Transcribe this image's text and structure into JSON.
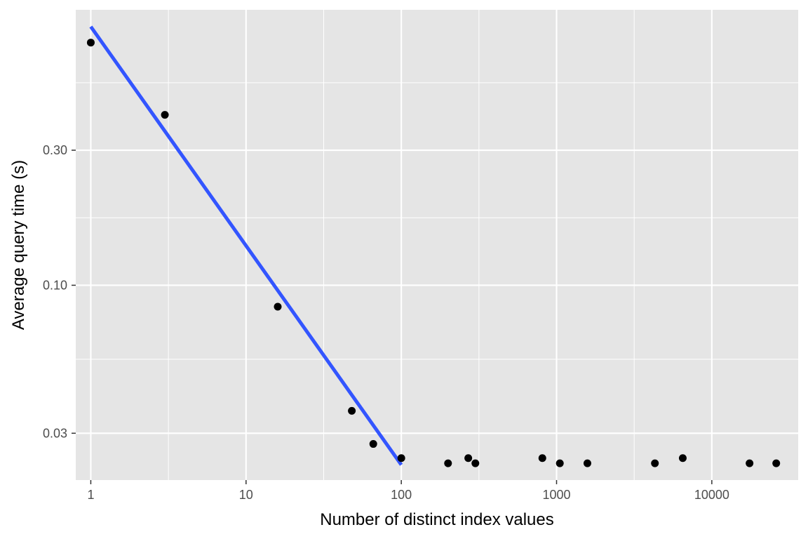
{
  "chart_data": {
    "type": "scatter",
    "title": "",
    "xlabel": "Number of distinct index values",
    "ylabel": "Average query time (s)",
    "x_scale": "log10",
    "y_scale": "log10",
    "xlim": [
      0.8,
      36000
    ],
    "ylim": [
      0.0205,
      0.94
    ],
    "x_ticks": [
      1,
      10,
      100,
      1000,
      10000
    ],
    "x_tick_labels": [
      "1",
      "10",
      "100",
      "1000",
      "10000"
    ],
    "y_ticks": [
      0.03,
      0.1,
      0.3
    ],
    "y_tick_labels": [
      "0.03",
      "0.10",
      "0.30"
    ],
    "grid": true,
    "background": "#e5e5e5",
    "point_color": "#000000",
    "fit_color": "#3355ff",
    "points": [
      {
        "x": 1,
        "y": 0.72
      },
      {
        "x": 3,
        "y": 0.4
      },
      {
        "x": 16,
        "y": 0.084
      },
      {
        "x": 48,
        "y": 0.036
      },
      {
        "x": 66,
        "y": 0.0275
      },
      {
        "x": 100,
        "y": 0.0245
      },
      {
        "x": 200,
        "y": 0.0235
      },
      {
        "x": 270,
        "y": 0.0245
      },
      {
        "x": 300,
        "y": 0.0235
      },
      {
        "x": 810,
        "y": 0.0245
      },
      {
        "x": 1050,
        "y": 0.0235
      },
      {
        "x": 1580,
        "y": 0.0235
      },
      {
        "x": 4300,
        "y": 0.0235
      },
      {
        "x": 6500,
        "y": 0.0245
      },
      {
        "x": 17500,
        "y": 0.0235
      },
      {
        "x": 26000,
        "y": 0.0235
      }
    ],
    "fit_line": {
      "x": [
        1,
        100
      ],
      "y": [
        0.82,
        0.0232
      ]
    }
  }
}
